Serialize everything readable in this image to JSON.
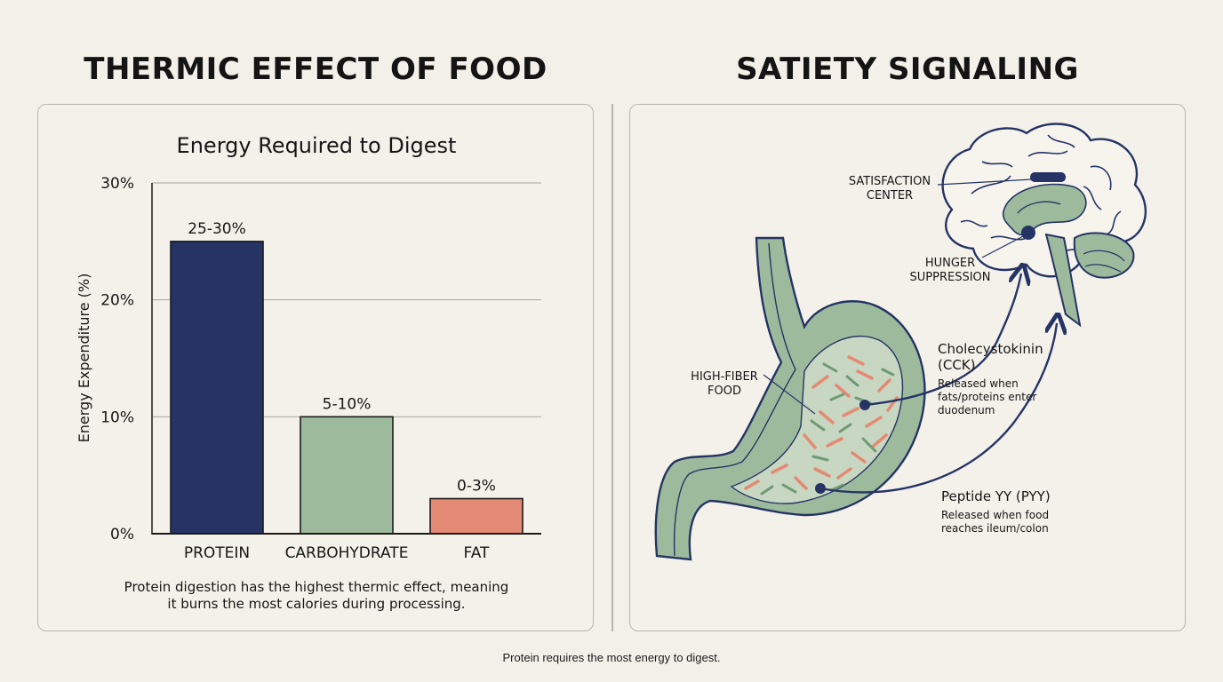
{
  "left_title": "THERMIC EFFECT OF FOOD",
  "right_title": "SATIETY SIGNALING",
  "chart_data": {
    "type": "bar",
    "title": "Energy Required to Digest",
    "ylabel": "Energy Expenditure (%)",
    "xlabel": "",
    "categories": [
      "PROTEIN",
      "CARBOHYDRATE",
      "FAT"
    ],
    "values": [
      25,
      10,
      3
    ],
    "data_labels": [
      "25-30%",
      "5-10%",
      "0-3%"
    ],
    "colors": [
      "#253464",
      "#9dbb9c",
      "#e48a74"
    ],
    "ylim": [
      0,
      30
    ],
    "yticks": [
      0,
      10,
      20,
      30
    ],
    "ytick_labels": [
      "0%",
      "10%",
      "20%",
      "30%"
    ],
    "grid": true
  },
  "chart_caption_line1": "Protein digestion has the highest thermic effect, meaning",
  "chart_caption_line2": "it burns the most calories during processing.",
  "diagram": {
    "satisfaction_center_line1": "SATISFACTION",
    "satisfaction_center_line2": "CENTER",
    "hunger_suppression_line1": "HUNGER",
    "hunger_suppression_line2": "SUPPRESSION",
    "high_fiber_line1": "HIGH-FIBER",
    "high_fiber_line2": "FOOD",
    "cck_name_line1": "Cholecystokinin",
    "cck_name_line2": "(CCK)",
    "cck_desc_line1": "Released when",
    "cck_desc_line2": "fats/proteins enter",
    "cck_desc_line3": "duodenum",
    "pyy_name": "Peptide YY (PYY)",
    "pyy_desc_line1": "Released when food",
    "pyy_desc_line2": "reaches ileum/colon",
    "colors": {
      "navy": "#253464",
      "sage": "#9dbb9c",
      "salmon": "#e48a74"
    }
  },
  "footer": "Protein requires the most energy to digest."
}
